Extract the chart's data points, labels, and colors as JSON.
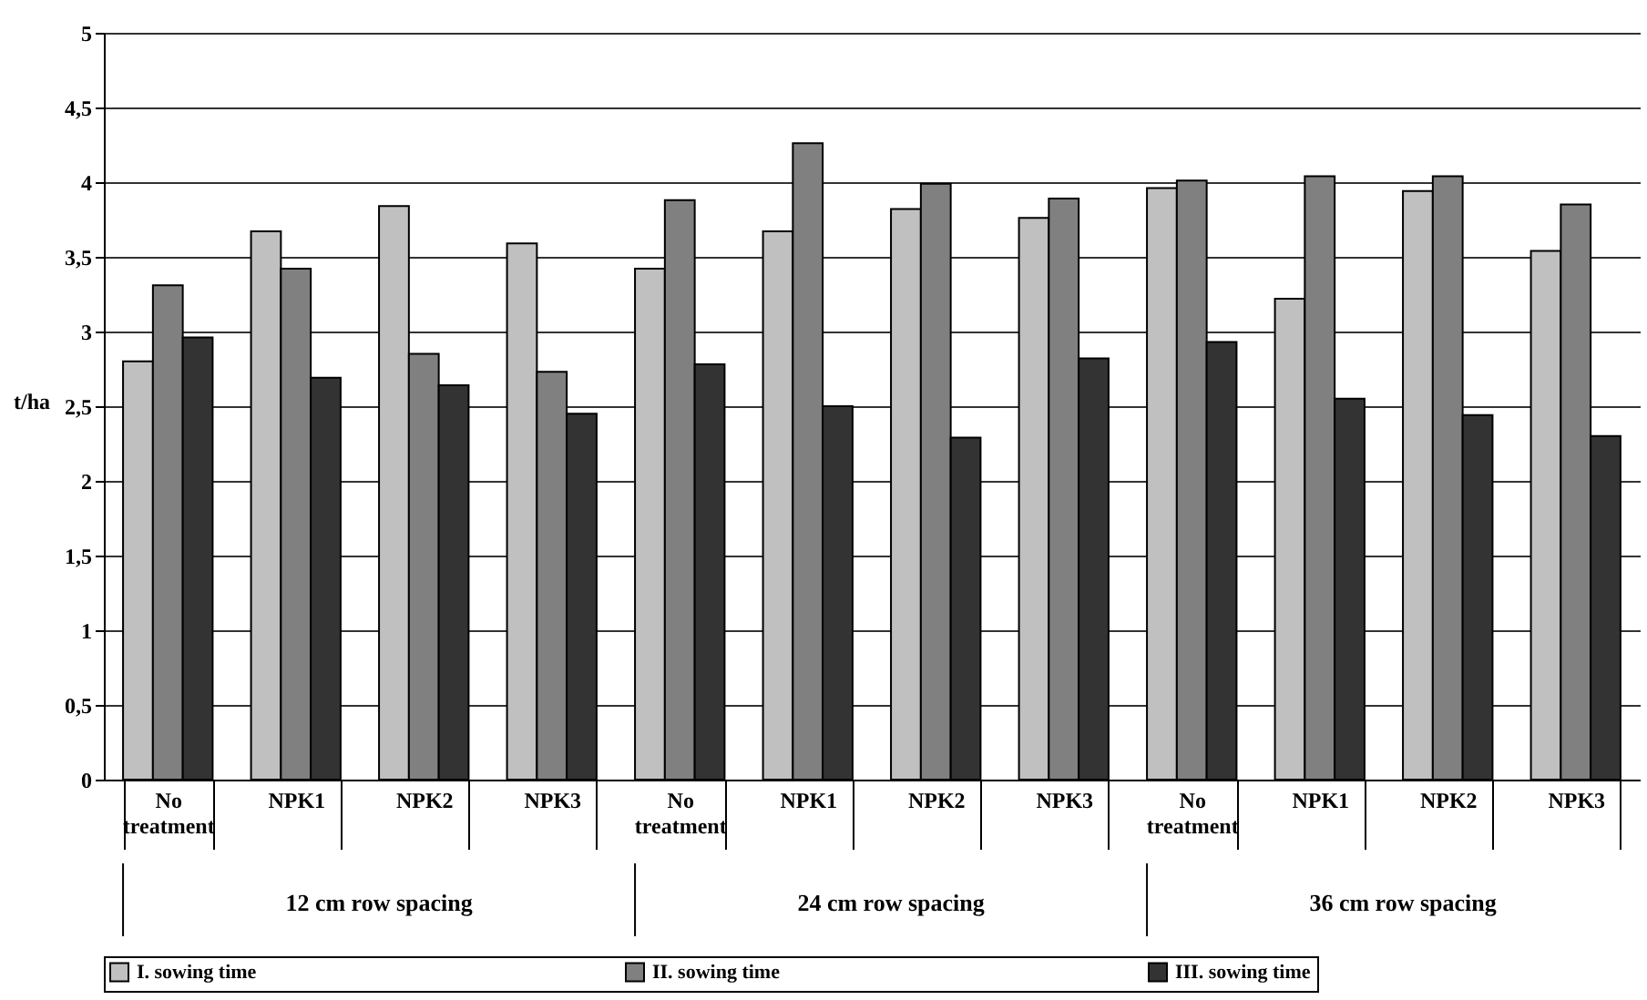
{
  "chart_data": {
    "type": "bar",
    "ylabel": "t/ha",
    "categories": [
      "No treatment",
      "NPK1",
      "NPK2",
      "NPK3",
      "No treatment",
      "NPK1",
      "NPK2",
      "NPK3",
      "No treatment",
      "NPK1",
      "NPK2",
      "NPK3"
    ],
    "series": [
      {
        "name": "I. sowing time",
        "color": "#c0c0c0",
        "values": [
          2.8,
          3.67,
          3.84,
          3.59,
          3.42,
          3.67,
          3.82,
          3.76,
          3.96,
          3.22,
          3.94,
          3.54
        ]
      },
      {
        "name": "II. sowing time",
        "color": "#808080",
        "values": [
          3.31,
          3.42,
          2.85,
          2.73,
          3.88,
          4.26,
          3.99,
          3.89,
          4.01,
          4.04,
          4.04,
          3.85
        ]
      },
      {
        "name": "III. sowing time",
        "color": "#333333",
        "values": [
          2.96,
          2.69,
          2.64,
          2.45,
          2.78,
          2.5,
          2.29,
          2.82,
          2.93,
          2.55,
          2.44,
          2.3
        ]
      }
    ],
    "annotations": [
      "12 cm row spacing",
      "24 cm row spacing",
      "36 cm row spacing"
    ],
    "ylim": [
      0,
      5
    ],
    "yticks": [
      0,
      {
        "value": 0.5,
        "label": "0,5"
      },
      1,
      {
        "value": 1.5,
        "label": "1,5"
      },
      2,
      {
        "value": 2.5,
        "label": "2,5"
      },
      3,
      {
        "value": 3.5,
        "label": "3,5"
      },
      4,
      {
        "value": 4.5,
        "label": "4,5"
      },
      5
    ],
    "grid": "y",
    "legend": "bottom"
  }
}
